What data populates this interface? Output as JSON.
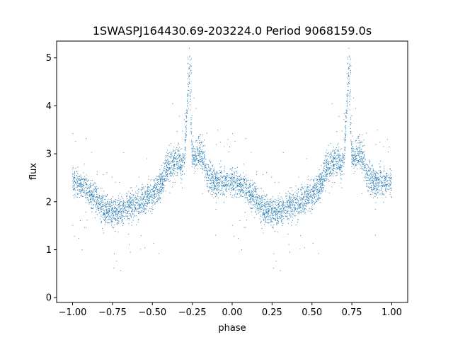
{
  "chart_data": {
    "type": "scatter",
    "title": "1SWASPJ164430.69-203224.0 Period 9068159.0s",
    "xlabel": "phase",
    "ylabel": "flux",
    "xlim": [
      -1.1,
      1.1
    ],
    "ylim": [
      -0.1,
      5.35
    ],
    "xticks": [
      -1.0,
      -0.75,
      -0.5,
      -0.25,
      0.0,
      0.25,
      0.5,
      0.75,
      1.0
    ],
    "xtick_labels": [
      "−1.00",
      "−0.75",
      "−0.50",
      "−0.25",
      "0.00",
      "0.25",
      "0.50",
      "0.75",
      "1.00"
    ],
    "yticks": [
      0,
      1,
      2,
      3,
      4,
      5
    ],
    "ytick_labels": [
      "0",
      "1",
      "2",
      "3",
      "4",
      "5"
    ],
    "grid": false,
    "marker_color": "#1f77b4",
    "series": [
      {
        "profile": [
          [
            0.0,
            2.4
          ],
          [
            0.05,
            2.35
          ],
          [
            0.1,
            2.2
          ],
          [
            0.15,
            2.05
          ],
          [
            0.2,
            1.85
          ],
          [
            0.25,
            1.75
          ],
          [
            0.3,
            1.85
          ],
          [
            0.35,
            1.9
          ],
          [
            0.4,
            1.95
          ],
          [
            0.45,
            2.05
          ],
          [
            0.5,
            2.15
          ],
          [
            0.55,
            2.35
          ],
          [
            0.6,
            2.75
          ],
          [
            0.65,
            2.85
          ],
          [
            0.7,
            2.8
          ],
          [
            0.73,
            4.7
          ],
          [
            0.75,
            2.9
          ],
          [
            0.8,
            3.05
          ],
          [
            0.85,
            2.55
          ],
          [
            0.9,
            2.4
          ],
          [
            0.95,
            2.45
          ],
          [
            1.0,
            2.4
          ]
        ]
      }
    ]
  }
}
